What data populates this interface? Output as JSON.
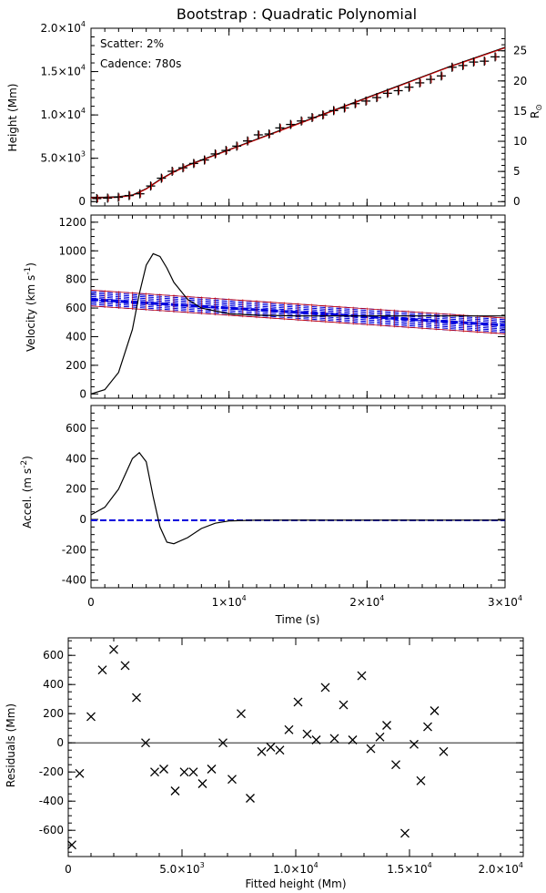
{
  "title": "Bootstrap : Quadratic Polynomial",
  "x_exponent_label": "4",
  "chart_data": [
    {
      "type": "line",
      "name": "height",
      "ylabel": "Height (Mm)",
      "y2label": "R",
      "y2label_sub": "⊙",
      "annotation_scatter": "Scatter: 2%",
      "annotation_cadence": "Cadence: 780s",
      "xlim": [
        0,
        30000
      ],
      "ylim": [
        -500,
        20000
      ],
      "yticks": [
        0,
        5000,
        10000,
        15000,
        20000
      ],
      "ytick_labels": [
        "0",
        "5.0×10",
        "1.0×10",
        "1.5×10",
        "2.0×10"
      ],
      "ytick_exponents": [
        "",
        "3",
        "4",
        "4",
        "4"
      ],
      "y2ticks": [
        0,
        5,
        10,
        15,
        20,
        25
      ],
      "y2_per_unit": 696,
      "x_model": [
        0,
        1000,
        2000,
        3000,
        4000,
        5000,
        6000,
        7000,
        8000,
        10000,
        12000,
        14000,
        16000,
        18000,
        20000,
        22000,
        24000,
        26000,
        28000,
        30000
      ],
      "y_model": [
        500,
        510,
        560,
        760,
        1500,
        2550,
        3450,
        4200,
        4800,
        6000,
        7200,
        8400,
        9600,
        10800,
        12000,
        13200,
        14400,
        15600,
        16700,
        17800
      ],
      "obs_x": [
        420,
        1200,
        1980,
        2760,
        3540,
        4320,
        5100,
        5880,
        6660,
        7440,
        8220,
        9000,
        9780,
        10560,
        11340,
        12120,
        12900,
        13680,
        14460,
        15240,
        16020,
        16800,
        17580,
        18360,
        19140,
        19920,
        20700,
        21480,
        22260,
        23040,
        23820,
        24600,
        25380,
        26160,
        26940,
        27720,
        28500,
        29280
      ],
      "obs_y": [
        350,
        400,
        500,
        700,
        900,
        1800,
        2700,
        3500,
        3900,
        4400,
        4800,
        5500,
        5900,
        6400,
        7000,
        7700,
        7800,
        8500,
        8900,
        9300,
        9700,
        10000,
        10500,
        10800,
        11300,
        11600,
        12000,
        12500,
        12800,
        13200,
        13700,
        14100,
        14500,
        15500,
        15700,
        16100,
        16200,
        16700
      ]
    },
    {
      "type": "line",
      "name": "velocity",
      "ylabel": "Velocity (km s",
      "ylabel_sup": "-1",
      "ylabel_end": ")",
      "xlim": [
        0,
        30000
      ],
      "ylim": [
        -30,
        1250
      ],
      "yticks": [
        0,
        200,
        400,
        600,
        800,
        1000,
        1200
      ],
      "ytick_labels": [
        "0",
        "200",
        "400",
        "600",
        "800",
        "1000",
        "1200"
      ],
      "x_model": [
        0,
        1000,
        2000,
        3000,
        3500,
        4000,
        4500,
        5000,
        5500,
        6000,
        7000,
        8000,
        10000,
        12000,
        15000,
        20000,
        25000,
        30000
      ],
      "y_model": [
        0,
        30,
        150,
        450,
        700,
        900,
        980,
        960,
        880,
        780,
        660,
        600,
        560,
        550,
        545,
        545,
        545,
        545
      ],
      "fit_x": [
        0,
        30000
      ],
      "fit_y": [
        660,
        480
      ],
      "band_upper": [
        725,
        530
      ],
      "band_lower": [
        615,
        420
      ]
    },
    {
      "type": "line",
      "name": "acceleration",
      "ylabel": "Accel. (m s",
      "ylabel_sup": "-2",
      "ylabel_end": ")",
      "xlabel": "Time (s)",
      "xlim": [
        0,
        30000
      ],
      "ylim": [
        -450,
        750
      ],
      "yticks": [
        -400,
        -200,
        0,
        200,
        400,
        600
      ],
      "ytick_labels": [
        "-400",
        "-200",
        "0",
        "200",
        "400",
        "600"
      ],
      "xticks": [
        0,
        10000,
        20000,
        30000
      ],
      "xtick_labels": [
        "0",
        "1×10",
        "2×10",
        "3×10"
      ],
      "x_model": [
        0,
        1000,
        2000,
        2500,
        3000,
        3500,
        4000,
        4500,
        5000,
        5500,
        6000,
        7000,
        8000,
        9000,
        10000,
        12000,
        30000
      ],
      "y_model": [
        30,
        80,
        200,
        300,
        400,
        440,
        380,
        150,
        -50,
        -150,
        -160,
        -120,
        -60,
        -25,
        -10,
        -5,
        -5
      ],
      "fit_y": -6
    },
    {
      "type": "scatter",
      "name": "residuals",
      "xlabel": "Fitted height (Mm)",
      "ylabel": "Residuals (Mm)",
      "xlim": [
        0,
        20000
      ],
      "ylim": [
        -780,
        720
      ],
      "yticks": [
        -600,
        -400,
        -200,
        0,
        200,
        400,
        600
      ],
      "ytick_labels": [
        "-600",
        "-400",
        "-200",
        "0",
        "200",
        "400",
        "600"
      ],
      "xticks": [
        0,
        5000,
        10000,
        15000,
        20000
      ],
      "xtick_labels": [
        "0",
        "5.0×10",
        "1.0×10",
        "1.5×10",
        "2.0×10"
      ],
      "xtick_exponents": [
        "",
        "3",
        "4",
        "4",
        "4"
      ],
      "x": [
        0,
        500,
        1000,
        1500,
        2000,
        2500,
        3000,
        3400,
        3800,
        4200,
        4700,
        5100,
        5500,
        5900,
        6300,
        6800,
        7200,
        7600,
        8000,
        8500,
        8900,
        9300,
        9700,
        10100,
        10500,
        10900,
        11300,
        11700,
        12100,
        12500,
        12900,
        13300,
        13700,
        14000,
        14400,
        14800,
        15200,
        15500,
        15800,
        16100,
        16500
      ],
      "y": [
        -700,
        -210,
        180,
        500,
        640,
        530,
        310,
        0,
        -200,
        -180,
        -330,
        -200,
        -200,
        -280,
        -180,
        0,
        -250,
        200,
        -380,
        -60,
        -30,
        -50,
        90,
        280,
        60,
        20,
        380,
        30,
        260,
        20,
        460,
        -40,
        40,
        120,
        -150,
        -620,
        -10,
        -260,
        110,
        220,
        -60
      ]
    }
  ]
}
